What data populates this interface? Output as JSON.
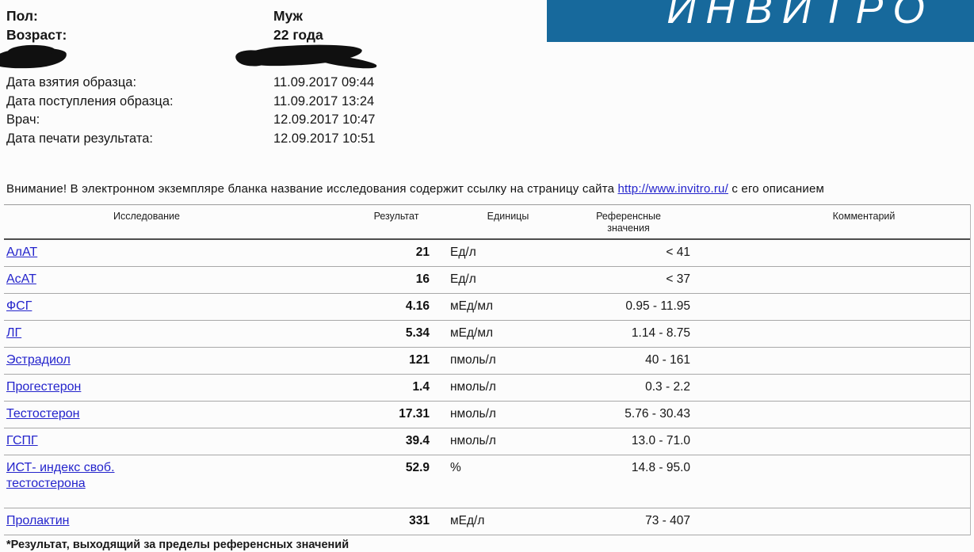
{
  "logo": {
    "text": "ИНВИТРО",
    "bg_color": "#17699c",
    "text_color": "#ffffff"
  },
  "patient": {
    "rows": [
      {
        "label": "Пол:",
        "value": "Муж"
      },
      {
        "label": "Возраст:",
        "value": "22 года"
      }
    ]
  },
  "redactions": [
    {
      "name": "redacted-patient-field-left"
    },
    {
      "name": "redacted-patient-field-right"
    }
  ],
  "dates": {
    "rows": [
      {
        "label": "Дата взятия образца:",
        "value": "11.09.2017 09:44"
      },
      {
        "label": "Дата поступления образца:",
        "value": "11.09.2017 13:24"
      },
      {
        "label": "Врач:",
        "value": "12.09.2017 10:47"
      },
      {
        "label": "Дата печати результата:",
        "value": "12.09.2017 10:51"
      }
    ]
  },
  "notice": {
    "prefix": "Внимание! В электронном экземпляре бланка название исследования содержит ссылку на страницу сайта ",
    "link_text": "http://www.invitro.ru/",
    "suffix": " с его описанием",
    "link_color": "#2323cc"
  },
  "table": {
    "headers": {
      "test": "Исследование",
      "result": "Результат",
      "units": "Единицы",
      "reference_line1": "Референсные",
      "reference_line2": "значения",
      "comment": "Комментарий"
    },
    "rows": [
      {
        "test": "АлАТ",
        "result": "21",
        "units": "Ед/л",
        "reference": "< 41",
        "comment": ""
      },
      {
        "test": "АсАТ",
        "result": "16",
        "units": "Ед/л",
        "reference": "< 37",
        "comment": ""
      },
      {
        "test": "ФСГ",
        "result": "4.16",
        "units": "мЕд/мл",
        "reference": "0.95 - 11.95",
        "comment": ""
      },
      {
        "test": "ЛГ",
        "result": "5.34",
        "units": "мЕд/мл",
        "reference": "1.14 - 8.75",
        "comment": ""
      },
      {
        "test": "Эстрадиол",
        "result": "121",
        "units": "пмоль/л",
        "reference": "40 - 161",
        "comment": ""
      },
      {
        "test": "Прогестерон",
        "result": "1.4",
        "units": "нмоль/л",
        "reference": "0.3 - 2.2",
        "comment": ""
      },
      {
        "test": "Тестостерон",
        "result": "17.31",
        "units": "нмоль/л",
        "reference": "5.76 - 30.43",
        "comment": ""
      },
      {
        "test": "ГСПГ",
        "result": "39.4",
        "units": "нмоль/л",
        "reference": "13.0 - 71.0",
        "comment": ""
      },
      {
        "test": "ИСТ- индекс своб. тестостерона",
        "result": "52.9",
        "units": "%",
        "reference": "14.8 - 95.0",
        "comment": ""
      },
      {
        "test": "Пролактин",
        "result": "331",
        "units": "мЕд/л",
        "reference": "73 - 407",
        "comment": ""
      }
    ],
    "footnote": "*Результат, выходящий за пределы референсных значений"
  },
  "colors": {
    "link": "#2424cc",
    "row_line": "#a8a8a8",
    "header_line": "#4d4d4d",
    "logo_bg": "#17699c"
  }
}
